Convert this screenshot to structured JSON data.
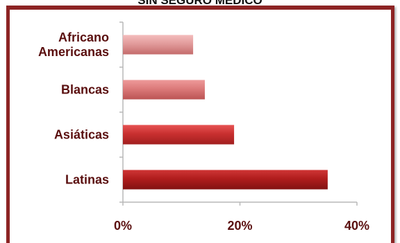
{
  "chart_data": {
    "type": "bar",
    "orientation": "horizontal",
    "title": "SIN SEGURO MÉDICO",
    "categories": [
      [
        "Africano",
        "Americanas"
      ],
      [
        "Blancas"
      ],
      [
        "Asiáticas"
      ],
      [
        "Latinas"
      ]
    ],
    "values": [
      12,
      14,
      19,
      35
    ],
    "xlim": [
      0,
      40
    ],
    "x_ticks": [
      "0%",
      "20%",
      "40%"
    ],
    "grid": false,
    "legend": "none",
    "colors": {
      "frame": "#8d2424",
      "text": "#5a0f0f",
      "axis": "#b8b8b8",
      "bars": [
        {
          "light": "#f3bcbc",
          "mid": "#e29b9b",
          "dark": "#c46c6c"
        },
        {
          "light": "#ee9a9a",
          "mid": "#dc7a7a",
          "dark": "#bb5454"
        },
        {
          "light": "#e65353",
          "mid": "#c93030",
          "dark": "#a11f1f"
        },
        {
          "light": "#cf3535",
          "mid": "#b01d1d",
          "dark": "#821212"
        }
      ]
    }
  }
}
